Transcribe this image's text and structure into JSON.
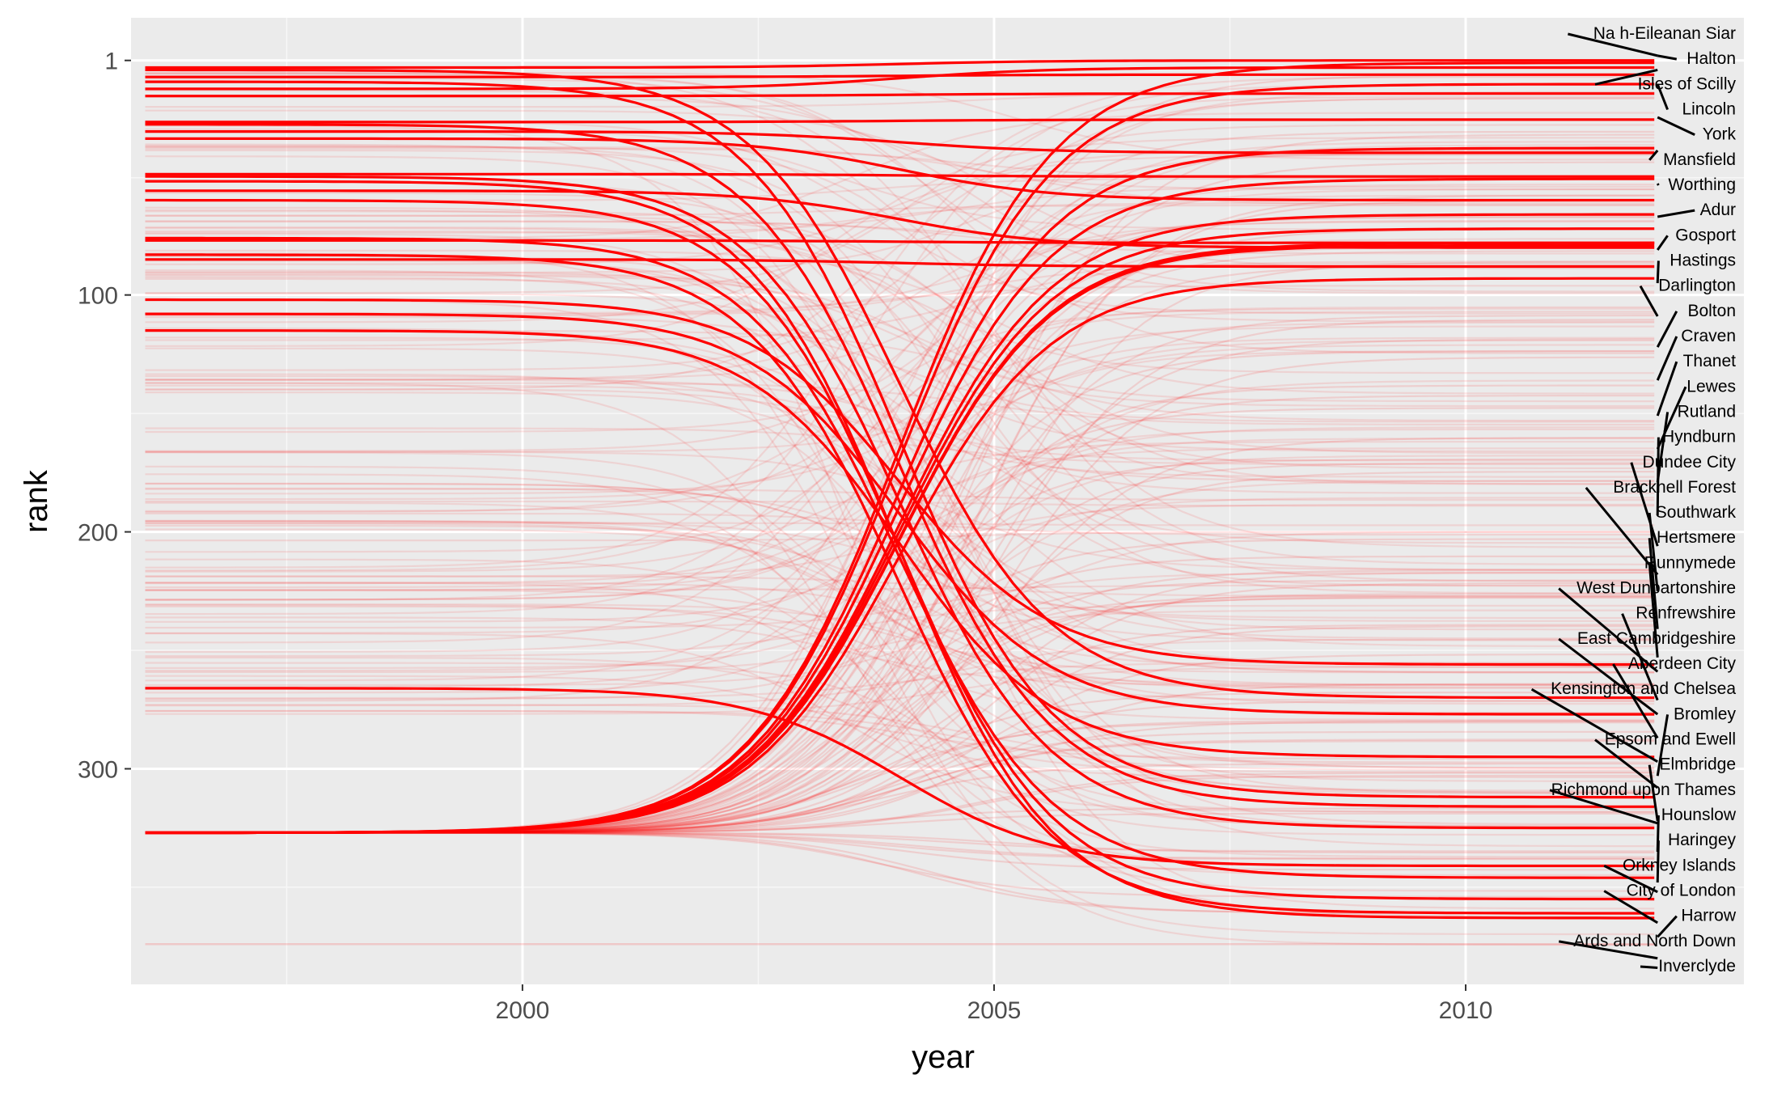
{
  "chart_data": {
    "type": "line",
    "xlabel": "year",
    "ylabel": "rank",
    "xlim": [
      1995.85,
      2012.95
    ],
    "ylim": [
      391,
      -17
    ],
    "y_reversed": true,
    "x_ticks": [
      2000,
      2005,
      2010
    ],
    "y_ticks": [
      1,
      100,
      200,
      300
    ],
    "x_start": 1996,
    "x_end": 2012,
    "grid": true,
    "background": "#ebebeb",
    "line_color": "#ff0000",
    "background_band": {
      "y_top": 5,
      "y_bottom": 278,
      "y_bottom_end": 376,
      "y_stack": 327,
      "y_low": 374
    },
    "highlight_series": [
      {
        "start": 4,
        "end": 1
      },
      {
        "start": 8,
        "end": 7
      },
      {
        "start": 13,
        "end": 4
      },
      {
        "start": 16,
        "end": 15
      },
      {
        "start": 27,
        "end": 26
      },
      {
        "start": 31,
        "end": 40
      },
      {
        "start": 34,
        "end": 60
      },
      {
        "start": 49,
        "end": 50
      },
      {
        "start": 56,
        "end": 80
      },
      {
        "start": 77,
        "end": 78
      },
      {
        "start": 85,
        "end": 88
      },
      {
        "start": 102,
        "end": 256
      },
      {
        "start": 108,
        "end": 277
      },
      {
        "start": 115,
        "end": 295
      },
      {
        "start": 266,
        "end": 341
      },
      {
        "start": 327,
        "end": 2
      },
      {
        "start": 327,
        "end": 11
      },
      {
        "start": 327,
        "end": 38
      },
      {
        "start": 327,
        "end": 51
      },
      {
        "start": 327,
        "end": 66
      },
      {
        "start": 327,
        "end": 72
      },
      {
        "start": 327,
        "end": 78
      },
      {
        "start": 327,
        "end": 79
      },
      {
        "start": 327,
        "end": 93
      },
      {
        "start": 5,
        "end": 270
      },
      {
        "start": 10,
        "end": 312
      },
      {
        "start": 28,
        "end": 316
      },
      {
        "start": 50,
        "end": 325
      },
      {
        "start": 60,
        "end": 355
      },
      {
        "start": 83,
        "end": 361
      },
      {
        "start": 76,
        "end": 346
      },
      {
        "start": 52,
        "end": 363
      }
    ],
    "labels": [
      {
        "text": "Na h-Eileanan Siar",
        "target_y": -1
      },
      {
        "text": "Halton",
        "target_y": -1
      },
      {
        "text": "Isles of Scilly",
        "target_y": 5
      },
      {
        "text": "Lincoln",
        "target_y": 11
      },
      {
        "text": "York",
        "target_y": 25
      },
      {
        "text": "Mansfield",
        "target_y": 39
      },
      {
        "text": "Worthing",
        "target_y": 53
      },
      {
        "text": "Adur",
        "target_y": 67
      },
      {
        "text": "Gosport",
        "target_y": 81
      },
      {
        "text": "Hastings",
        "target_y": 95
      },
      {
        "text": "Darlington",
        "target_y": 109
      },
      {
        "text": "Bolton",
        "target_y": 122
      },
      {
        "text": "Craven",
        "target_y": 136
      },
      {
        "text": "Thanet",
        "target_y": 151
      },
      {
        "text": "Lewes",
        "target_y": 165
      },
      {
        "text": "Rutland",
        "target_y": 179
      },
      {
        "text": "Hyndburn",
        "target_y": 193
      },
      {
        "text": "Dundee City",
        "target_y": 206
      },
      {
        "text": "Bracknell Forest",
        "target_y": 218
      },
      {
        "text": "Southwark",
        "target_y": 225
      },
      {
        "text": "Hertsmere",
        "target_y": 241
      },
      {
        "text": "Runnymede",
        "target_y": 253
      },
      {
        "text": "West Dunbartonshire",
        "target_y": 259
      },
      {
        "text": "Renfrewshire",
        "target_y": 271
      },
      {
        "text": "East Cambridgeshire",
        "target_y": 277
      },
      {
        "text": "Aberdeen City",
        "target_y": 287
      },
      {
        "text": "Kensington and Chelsea",
        "target_y": 297
      },
      {
        "text": "Bromley",
        "target_y": 303
      },
      {
        "text": "Epsom and Ewell",
        "target_y": 308
      },
      {
        "text": "Elmbridge",
        "target_y": 322
      },
      {
        "text": "Richmond upon Thames",
        "target_y": 323
      },
      {
        "text": "Hounslow",
        "target_y": 335
      },
      {
        "text": "Haringey",
        "target_y": 348
      },
      {
        "text": "Orkney Islands",
        "target_y": 352
      },
      {
        "text": "City of London",
        "target_y": 365
      },
      {
        "text": "Harrow",
        "target_y": 371
      },
      {
        "text": "Ards and North Down",
        "target_y": 380
      },
      {
        "text": "Inverclyde",
        "target_y": 384
      }
    ]
  }
}
